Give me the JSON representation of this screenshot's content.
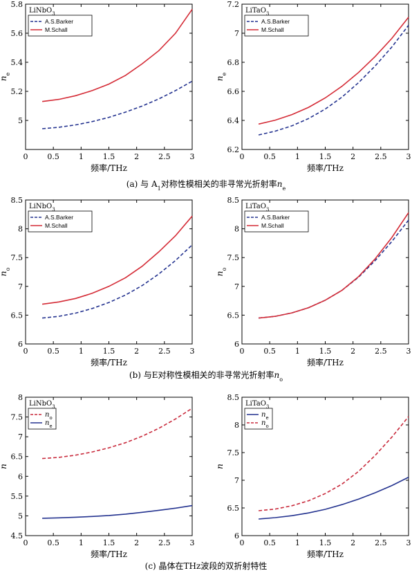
{
  "colors": {
    "solid_red": "#d42a35",
    "dash_blue": "#23328f",
    "solid_blue": "#23328f",
    "dash_red": "#c8283a",
    "axis": "#000000"
  },
  "captions": [
    "(a) 与 A₁对称性模相关的非寻常光折射率n_e",
    "(b) 与E对称性模相关的非寻常光折射率n_o",
    "(c) 晶体在THz波段的双折射特性"
  ],
  "chart_data": [
    {
      "type": "line",
      "title": "LiNbO3",
      "xlabel": "频率/THz",
      "ylabel": "n_e",
      "xlim": [
        0,
        3
      ],
      "ylim": [
        4.8,
        5.8
      ],
      "xticks": [
        "0",
        "0.5",
        "1",
        "1.5",
        "2",
        "2.5",
        "3"
      ],
      "yticks": [
        "5",
        "5.2",
        "5.4",
        "5.6",
        "5.8"
      ],
      "legend": "top-left",
      "series": [
        {
          "name": "A.S.Barker",
          "style": "dashed",
          "color": "#23328f",
          "x": [
            0.3,
            0.6,
            0.9,
            1.2,
            1.5,
            1.8,
            2.1,
            2.4,
            2.7,
            3.0
          ],
          "y": [
            4.943,
            4.953,
            4.969,
            4.992,
            5.021,
            5.057,
            5.099,
            5.148,
            5.205,
            5.27
          ]
        },
        {
          "name": "M.Schall",
          "style": "solid",
          "color": "#d42a35",
          "x": [
            0.3,
            0.6,
            0.9,
            1.2,
            1.5,
            1.8,
            2.1,
            2.4,
            2.7,
            3.0
          ],
          "y": [
            5.13,
            5.145,
            5.17,
            5.205,
            5.25,
            5.31,
            5.39,
            5.48,
            5.6,
            5.765
          ]
        }
      ]
    },
    {
      "type": "line",
      "title": "LiTaO3",
      "xlabel": "频率/THz",
      "ylabel": "n_e",
      "xlim": [
        0,
        3
      ],
      "ylim": [
        6.2,
        7.2
      ],
      "xticks": [
        "0",
        "0.5",
        "1",
        "1.5",
        "2",
        "2.5",
        "3"
      ],
      "yticks": [
        "6.2",
        "6.4",
        "6.6",
        "6.8",
        "7",
        "7.2"
      ],
      "legend": "top-left",
      "series": [
        {
          "name": "A.S.Barker",
          "style": "dashed",
          "color": "#23328f",
          "x": [
            0.3,
            0.6,
            0.9,
            1.2,
            1.5,
            1.8,
            2.1,
            2.4,
            2.7,
            3.0
          ],
          "y": [
            6.3,
            6.326,
            6.363,
            6.413,
            6.478,
            6.56,
            6.66,
            6.775,
            6.905,
            7.055
          ]
        },
        {
          "name": "M.Schall",
          "style": "solid",
          "color": "#d42a35",
          "x": [
            0.3,
            0.6,
            0.9,
            1.2,
            1.5,
            1.8,
            2.1,
            2.4,
            2.7,
            3.0
          ],
          "y": [
            6.375,
            6.402,
            6.44,
            6.49,
            6.555,
            6.635,
            6.73,
            6.84,
            6.965,
            7.11
          ]
        }
      ]
    },
    {
      "type": "line",
      "title": "LiNbO3",
      "xlabel": "频率/THz",
      "ylabel": "n_o",
      "xlim": [
        0,
        3
      ],
      "ylim": [
        6,
        8.5
      ],
      "xticks": [
        "0",
        "0.5",
        "1",
        "1.5",
        "2",
        "2.5",
        "3"
      ],
      "yticks": [
        "6",
        "6.5",
        "7",
        "7.5",
        "8",
        "8.5"
      ],
      "legend": "top-left",
      "series": [
        {
          "name": "A.S.Barker",
          "style": "dashed",
          "color": "#23328f",
          "x": [
            0.3,
            0.6,
            0.9,
            1.2,
            1.5,
            1.8,
            2.1,
            2.4,
            2.7,
            3.0
          ],
          "y": [
            6.45,
            6.48,
            6.535,
            6.615,
            6.72,
            6.85,
            7.015,
            7.215,
            7.45,
            7.72
          ]
        },
        {
          "name": "M.Schall",
          "style": "solid",
          "color": "#d42a35",
          "x": [
            0.3,
            0.6,
            0.9,
            1.2,
            1.5,
            1.8,
            2.1,
            2.4,
            2.7,
            3.0
          ],
          "y": [
            6.69,
            6.73,
            6.79,
            6.88,
            7.0,
            7.15,
            7.35,
            7.6,
            7.88,
            8.22
          ]
        }
      ]
    },
    {
      "type": "line",
      "title": "LiTaO3",
      "xlabel": "频率/THz",
      "ylabel": "n_o",
      "xlim": [
        0,
        3
      ],
      "ylim": [
        6,
        8.5
      ],
      "xticks": [
        "0",
        "0.5",
        "1",
        "1.5",
        "2",
        "2.5",
        "3"
      ],
      "yticks": [
        "6",
        "6.5",
        "7",
        "7.5",
        "8",
        "8.5"
      ],
      "legend": "top-left",
      "series": [
        {
          "name": "A.S.Barker",
          "style": "dashed",
          "color": "#23328f",
          "x": [
            0.3,
            0.6,
            0.9,
            1.2,
            1.5,
            1.8,
            2.1,
            2.4,
            2.7,
            3.0
          ],
          "y": [
            6.45,
            6.48,
            6.54,
            6.63,
            6.76,
            6.93,
            7.16,
            7.45,
            7.78,
            8.15
          ]
        },
        {
          "name": "M.Schall",
          "style": "solid",
          "color": "#d42a35",
          "x": [
            0.3,
            0.6,
            0.9,
            1.2,
            1.5,
            1.8,
            2.1,
            2.4,
            2.7,
            3.0
          ],
          "y": [
            6.45,
            6.48,
            6.54,
            6.63,
            6.76,
            6.93,
            7.17,
            7.48,
            7.85,
            8.28
          ]
        }
      ]
    },
    {
      "type": "line",
      "title": "LiNbO3",
      "xlabel": "频率/THz",
      "ylabel": "n",
      "xlim": [
        0,
        3
      ],
      "ylim": [
        4.5,
        8
      ],
      "xticks": [
        "0",
        "0.5",
        "1",
        "1.5",
        "2",
        "2.5",
        "3"
      ],
      "yticks": [
        "4.5",
        "5",
        "5.5",
        "6",
        "6.5",
        "7",
        "7.5",
        "8"
      ],
      "legend": "top-left",
      "series": [
        {
          "name": "n_o",
          "style": "dashed",
          "color": "#c8283a",
          "x": [
            0.3,
            0.6,
            0.9,
            1.2,
            1.5,
            1.8,
            2.1,
            2.4,
            2.7,
            3.0
          ],
          "y": [
            6.45,
            6.48,
            6.535,
            6.615,
            6.72,
            6.85,
            7.015,
            7.215,
            7.45,
            7.72
          ]
        },
        {
          "name": "n_e",
          "style": "solid",
          "color": "#23328f",
          "x": [
            0.3,
            0.6,
            0.9,
            1.2,
            1.5,
            1.8,
            2.1,
            2.4,
            2.7,
            3.0
          ],
          "y": [
            4.94,
            4.95,
            4.965,
            4.985,
            5.01,
            5.045,
            5.09,
            5.14,
            5.195,
            5.26
          ]
        }
      ]
    },
    {
      "type": "line",
      "title": "LiTaO3",
      "xlabel": "频率/THz",
      "ylabel": "n",
      "xlim": [
        0,
        3
      ],
      "ylim": [
        6,
        8.5
      ],
      "xticks": [
        "0",
        "0.5",
        "1",
        "1.5",
        "2",
        "2.5",
        "3"
      ],
      "yticks": [
        "6",
        "6.5",
        "7",
        "7.5",
        "8",
        "8.5"
      ],
      "legend": "top-left",
      "series": [
        {
          "name": "n_e",
          "style": "solid",
          "color": "#23328f",
          "x": [
            0.3,
            0.6,
            0.9,
            1.2,
            1.5,
            1.8,
            2.1,
            2.4,
            2.7,
            3.0
          ],
          "y": [
            6.3,
            6.325,
            6.36,
            6.41,
            6.475,
            6.56,
            6.66,
            6.775,
            6.905,
            7.055
          ]
        },
        {
          "name": "n_o",
          "style": "dashed",
          "color": "#c8283a",
          "x": [
            0.3,
            0.6,
            0.9,
            1.2,
            1.5,
            1.8,
            2.1,
            2.4,
            2.7,
            3.0
          ],
          "y": [
            6.45,
            6.48,
            6.54,
            6.63,
            6.76,
            6.93,
            7.16,
            7.45,
            7.78,
            8.15
          ]
        }
      ]
    }
  ]
}
